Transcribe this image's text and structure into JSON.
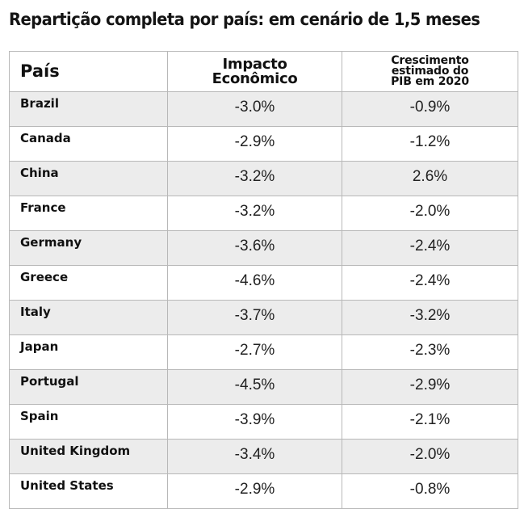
{
  "title": "Repartição completa por país: em cenário de 1,5 meses",
  "chart_data": {
    "type": "table",
    "title": "Repartição completa por país: em cenário de 1,5 meses",
    "columns": [
      "País",
      "Impacto Econômico",
      "Crescimento estimado do PIB em 2020"
    ],
    "rows": [
      {
        "country": "Brazil",
        "impact": "-3.0%",
        "growth": "-0.9%"
      },
      {
        "country": "Canada",
        "impact": "-2.9%",
        "growth": "-1.2%"
      },
      {
        "country": "China",
        "impact": "-3.2%",
        "growth": "2.6%"
      },
      {
        "country": "France",
        "impact": "-3.2%",
        "growth": "-2.0%"
      },
      {
        "country": "Germany",
        "impact": "-3.6%",
        "growth": "-2.4%"
      },
      {
        "country": "Greece",
        "impact": "-4.6%",
        "growth": "-2.4%"
      },
      {
        "country": "Italy",
        "impact": "-3.7%",
        "growth": "-3.2%"
      },
      {
        "country": "Japan",
        "impact": "-2.7%",
        "growth": "-2.3%"
      },
      {
        "country": "Portugal",
        "impact": "-4.5%",
        "growth": "-2.9%"
      },
      {
        "country": "Spain",
        "impact": "-3.9%",
        "growth": "-2.1%"
      },
      {
        "country": "United Kingdom",
        "impact": "-3.4%",
        "growth": "-2.0%"
      },
      {
        "country": "United States",
        "impact": "-2.9%",
        "growth": "-0.8%"
      }
    ],
    "stripe_color": "#ececec",
    "border_color": "#b8b8b8"
  }
}
